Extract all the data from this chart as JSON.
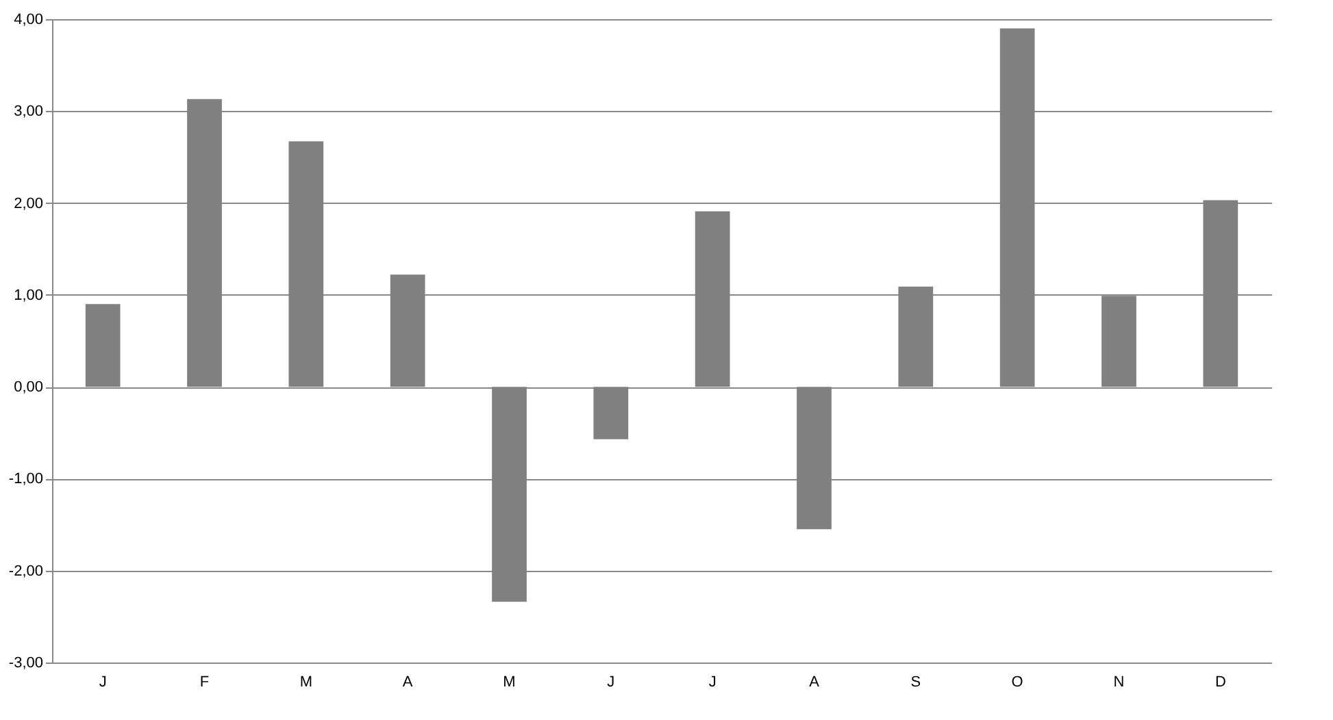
{
  "chart_data": {
    "type": "bar",
    "categories": [
      "J",
      "F",
      "M",
      "A",
      "M",
      "J",
      "J",
      "A",
      "S",
      "O",
      "N",
      "D"
    ],
    "values": [
      0.9,
      3.13,
      2.67,
      1.22,
      -2.34,
      -0.57,
      1.91,
      -1.55,
      1.09,
      3.9,
      0.99,
      2.03
    ],
    "color": "#808080",
    "ylim": [
      -3,
      4
    ],
    "yticks": [
      {
        "value": -3,
        "label": "-3,00"
      },
      {
        "value": -2,
        "label": "-2,00"
      },
      {
        "value": -1,
        "label": "-1,00"
      },
      {
        "value": 0,
        "label": "0,00"
      },
      {
        "value": 1,
        "label": "1,00"
      },
      {
        "value": 2,
        "label": "2,00"
      },
      {
        "value": 3,
        "label": "3,00"
      },
      {
        "value": 4,
        "label": "4,00"
      }
    ],
    "grid": "y"
  }
}
